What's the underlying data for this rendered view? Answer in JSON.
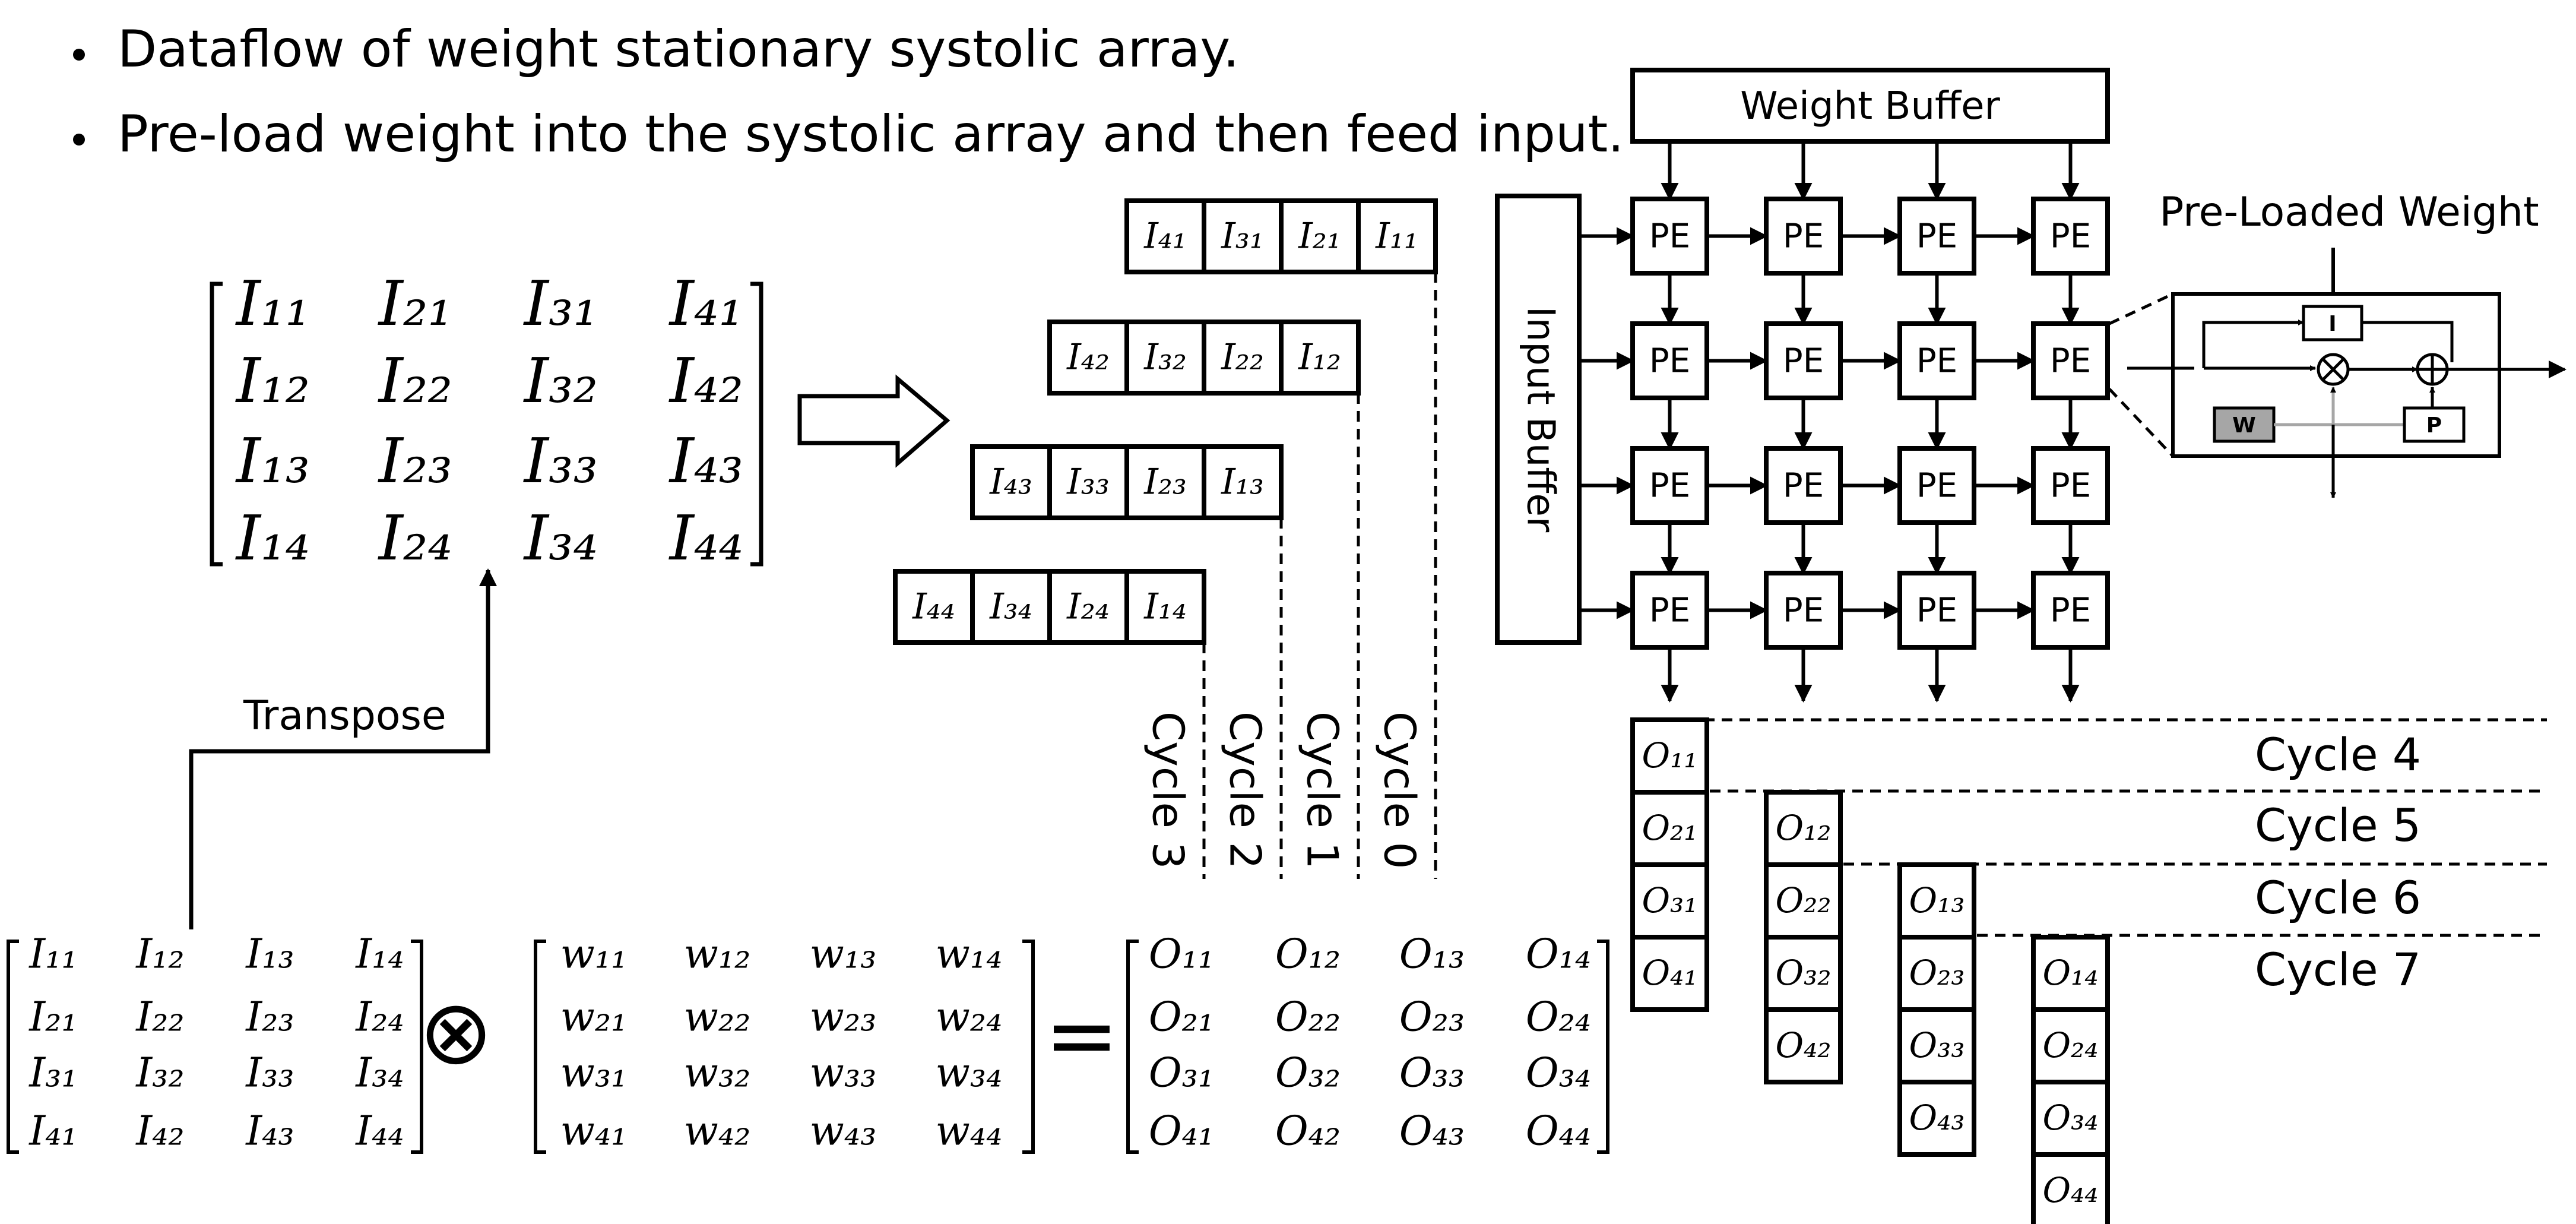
{
  "bullets": [
    "Dataflow of weight stationary systolic array.",
    "Pre-load weight into the systolic array and then feed input."
  ],
  "transpose_label": "Transpose",
  "weight_buffer_label": "Weight Buffer",
  "input_buffer_label": "Input Buffer",
  "pe_label": "PE",
  "preloaded_label": "Pre-Loaded Weight",
  "pe_detail": {
    "input_reg": "I",
    "weight_reg": "W",
    "psum_reg": "P"
  },
  "equation_ops": {
    "multiply": "⊗",
    "equals": "="
  },
  "transposed_matrix": [
    [
      "I₁₁",
      "I₂₁",
      "I₃₁",
      "I₄₁"
    ],
    [
      "I₁₂",
      "I₂₂",
      "I₃₂",
      "I₄₂"
    ],
    [
      "I₁₃",
      "I₂₃",
      "I₃₃",
      "I₄₃"
    ],
    [
      "I₁₄",
      "I₂₄",
      "I₃₄",
      "I₄₄"
    ]
  ],
  "input_matrix": [
    [
      "I₁₁",
      "I₁₂",
      "I₁₃",
      "I₁₄"
    ],
    [
      "I₂₁",
      "I₂₂",
      "I₂₃",
      "I₂₄"
    ],
    [
      "I₃₁",
      "I₃₂",
      "I₃₃",
      "I₃₄"
    ],
    [
      "I₄₁",
      "I₄₂",
      "I₄₃",
      "I₄₄"
    ]
  ],
  "weight_matrix": [
    [
      "w₁₁",
      "w₁₂",
      "w₁₃",
      "w₁₄"
    ],
    [
      "w₂₁",
      "w₂₂",
      "w₂₃",
      "w₂₄"
    ],
    [
      "w₃₁",
      "w₃₂",
      "w₃₃",
      "w₃₄"
    ],
    [
      "w₄₁",
      "w₄₂",
      "w₄₃",
      "w₄₄"
    ]
  ],
  "output_matrix": [
    [
      "O₁₁",
      "O₁₂",
      "O₁₃",
      "O₁₄"
    ],
    [
      "O₂₁",
      "O₂₂",
      "O₂₃",
      "O₂₄"
    ],
    [
      "O₃₁",
      "O₃₂",
      "O₃₃",
      "O₃₄"
    ],
    [
      "O₄₁",
      "O₄₂",
      "O₄₃",
      "O₄₄"
    ]
  ],
  "skewed_inputs": [
    [
      "I₄₁",
      "I₃₁",
      "I₂₁",
      "I₁₁"
    ],
    [
      "I₄₂",
      "I₃₂",
      "I₂₂",
      "I₁₂"
    ],
    [
      "I₄₃",
      "I₃₃",
      "I₂₃",
      "I₁₃"
    ],
    [
      "I₄₄",
      "I₃₄",
      "I₂₄",
      "I₁₄"
    ]
  ],
  "input_cycles": [
    "Cycle 3",
    "Cycle 2",
    "Cycle 1",
    "Cycle 0"
  ],
  "output_columns": [
    [
      "O₁₁",
      "O₂₁",
      "O₃₁",
      "O₄₁"
    ],
    [
      "O₁₂",
      "O₂₂",
      "O₃₂",
      "O₄₂"
    ],
    [
      "O₁₃",
      "O₂₃",
      "O₃₃",
      "O₄₃"
    ],
    [
      "O₁₄",
      "O₂₄",
      "O₃₄",
      "O₄₄"
    ]
  ],
  "output_cycles": [
    "Cycle 4",
    "Cycle 5",
    "Cycle 6",
    "Cycle 7"
  ]
}
